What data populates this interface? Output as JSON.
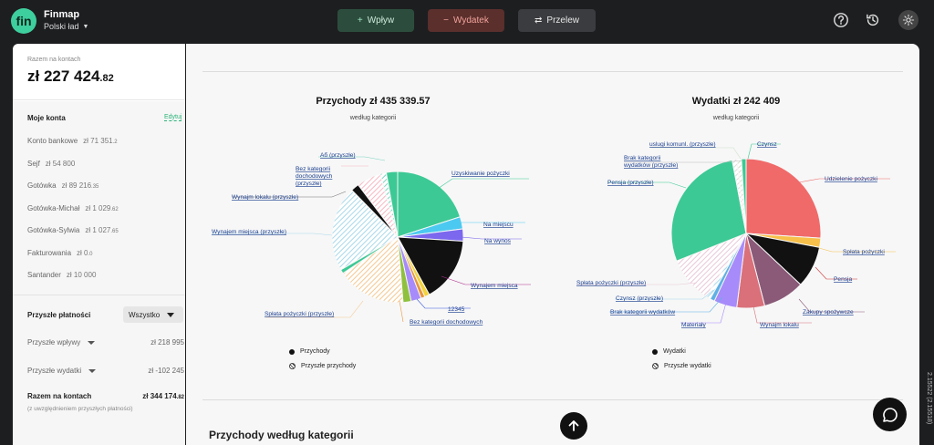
{
  "app": {
    "logo_text": "fin",
    "name": "Finmap",
    "workspace": "Polski ład"
  },
  "toolbar": {
    "income": {
      "symbol": "+",
      "label": "Wpływ"
    },
    "expense": {
      "symbol": "−",
      "label": "Wydatek"
    },
    "transfer": {
      "symbol": "⇄",
      "label": "Przelew"
    },
    "icons": [
      "help-icon",
      "history-icon",
      "settings-icon"
    ]
  },
  "sidebar": {
    "balance_label": "Razem na kontach",
    "balance_main": "zł 227 424",
    "balance_dec": ".82",
    "accounts_title": "Moje konta",
    "edit_label": "Edytuj",
    "accounts": [
      {
        "name": "Konto bankowe",
        "amount": "zł 71 351",
        "dec": ".2"
      },
      {
        "name": "Sejf",
        "amount": "zł 54 800",
        "dec": ""
      },
      {
        "name": "Gotówka",
        "amount": "zł 89 216",
        "dec": ".35"
      },
      {
        "name": "Gotówka-Michał",
        "amount": "zł 1 029",
        "dec": ".62"
      },
      {
        "name": "Gotówka-Sylwia",
        "amount": "zł 1 027",
        "dec": ".65"
      },
      {
        "name": "Fakturowania",
        "amount": "zł 0",
        "dec": ".0"
      },
      {
        "name": "Santander",
        "amount": "zł 10 000",
        "dec": ""
      }
    ],
    "future_title": "Przyszłe płatności",
    "future_filter": "Wszystko",
    "future_income_label": "Przyszłe wpływy",
    "future_income_value": "zł 218 995",
    "future_expense_label": "Przyszłe wydatki",
    "future_expense_value": "zł -102 245",
    "total_label": "Razem na kontach",
    "total_value": "zł 344 174",
    "total_dec": ".82",
    "total_note": "(z uwzględnieniem przyszłych płatności)"
  },
  "income_chart": {
    "title": "Przychody zł 435 339.57",
    "subtitle": "według kategorii",
    "legend_actual": "Przychody",
    "legend_future": "Przyszłe przychody",
    "labels": [
      "Uzyskiwanie pożyczki",
      "Na miejscu",
      "Na wynos",
      "Wynajem miejsca",
      "12345",
      "Bez kategorii dochodowych",
      "Spłata pożyczki (przyszłe)",
      "Wynajem miejsca (przyszłe)",
      "Wynajm lokalu (przyszłe)",
      "Bez kategorii",
      "dochodowych",
      "(przyszłe)",
      "Aб (przyszłe)"
    ]
  },
  "expense_chart": {
    "title": "Wydatki zł 242 409",
    "subtitle": "według kategorii",
    "legend_actual": "Wydatki",
    "legend_future": "Przyszłe wydatki",
    "labels": [
      "Czynsz",
      "uslugi komunl. (przyszłe)",
      "Brak kategorii",
      "wydatków (przyszłe)",
      "Udzielenie pożyczki",
      "Pensja (przyszłe)",
      "Spłata pożyczki",
      "Pensja",
      "Spłata pożyczki (przyszłe)",
      "Zakupy spożywcze",
      "Czynsz (przyszłe)",
      "Brak kategorii wydatków",
      "Wynajm lokalu",
      "Materiały"
    ]
  },
  "chart_data": [
    {
      "type": "pie",
      "title": "Przychody zł 435 339.57",
      "subtitle": "według kategorii",
      "legend": [
        "Przychody",
        "Przyszłe przychody"
      ],
      "slices": [
        {
          "name": "Uzyskiwanie pożyczki",
          "value": 20,
          "color": "#3cc995",
          "future": false
        },
        {
          "name": "Na miejscu",
          "value": 3,
          "color": "#4cc9f0",
          "future": false
        },
        {
          "name": "Na wynos",
          "value": 3,
          "color": "#7b68ee",
          "future": false
        },
        {
          "name": "Wynajem miejsca",
          "value": 16,
          "color": "#111111",
          "future": false
        },
        {
          "name": "12345",
          "value": 1.2,
          "color": "#f3d23c",
          "future": false
        },
        {
          "name": "12345",
          "value": 1,
          "color": "#e8953a",
          "future": false
        },
        {
          "name": "Bez kategorii dochodowych",
          "value": 2.5,
          "color": "#a78bfa",
          "future": false
        },
        {
          "name": "Bez kategorii dochodowych",
          "value": 2,
          "color": "#8fc13f",
          "future": false
        },
        {
          "name": "Spłata pożyczki (przyszłe)",
          "value": 17,
          "color": "#f5c78f",
          "future": true
        },
        {
          "name": "Spłata pożyczki (przyszłe)",
          "value": 1,
          "color": "#3cc995",
          "future": false
        },
        {
          "name": "Wynajem miejsca (przyszłe)",
          "value": 21,
          "color": "#a8d8ea",
          "future": true
        },
        {
          "name": "Wynajm lokalu (przyszłe)",
          "value": 2,
          "color": "#111111",
          "future": false
        },
        {
          "name": "Bez kategorii dochodowych (przyszłe)",
          "value": 6,
          "color": "#f7b6c2",
          "future": true
        },
        {
          "name": "Aб (przyszłe)",
          "value": 1.5,
          "color": "#7dd3c0",
          "future": true
        },
        {
          "name": "Aб (przyszłe)",
          "value": 2.8,
          "color": "#3cc995",
          "future": false
        }
      ]
    },
    {
      "type": "pie",
      "title": "Wydatki zł 242 409",
      "subtitle": "według kategorii",
      "legend": [
        "Wydatki",
        "Przyszłe wydatki"
      ],
      "slices": [
        {
          "name": "Udzielenie pożyczki",
          "value": 26,
          "color": "#f06a6a",
          "future": false
        },
        {
          "name": "Spłata pożyczki",
          "value": 2,
          "color": "#f7c04a",
          "future": false
        },
        {
          "name": "Pensja",
          "value": 9,
          "color": "#111111",
          "future": false
        },
        {
          "name": "Zakupy spożywcze",
          "value": 9,
          "color": "#8a5a78",
          "future": false
        },
        {
          "name": "Wynajm lokalu",
          "value": 6,
          "color": "#d9707a",
          "future": false
        },
        {
          "name": "Materiały",
          "value": 5,
          "color": "#a78bfa",
          "future": false
        },
        {
          "name": "Brak kategorii wydatków",
          "value": 1,
          "color": "#5eb0e5",
          "future": false
        },
        {
          "name": "Czynsz (przyszłe)",
          "value": 1,
          "color": "#a8d8ea",
          "future": true
        },
        {
          "name": "Spłata pożyczki (przyszłe)",
          "value": 10,
          "color": "#e8c8d8",
          "future": true
        },
        {
          "name": "Pensja (przyszłe)",
          "value": 28,
          "color": "#3cc995",
          "future": false
        },
        {
          "name": "Brak kategorii wydatków (przyszłe)",
          "value": 1,
          "color": "#dddddd",
          "future": true
        },
        {
          "name": "uslugi komunl. (przyszłe)",
          "value": 1,
          "color": "#cfe0c8",
          "future": true
        },
        {
          "name": "Czynsz",
          "value": 1,
          "color": "#3cc995",
          "future": false
        }
      ]
    }
  ],
  "section": {
    "bottom_title": "Przychody według kategorii"
  },
  "misc": {
    "version": "2.15522 (2.15518)"
  }
}
